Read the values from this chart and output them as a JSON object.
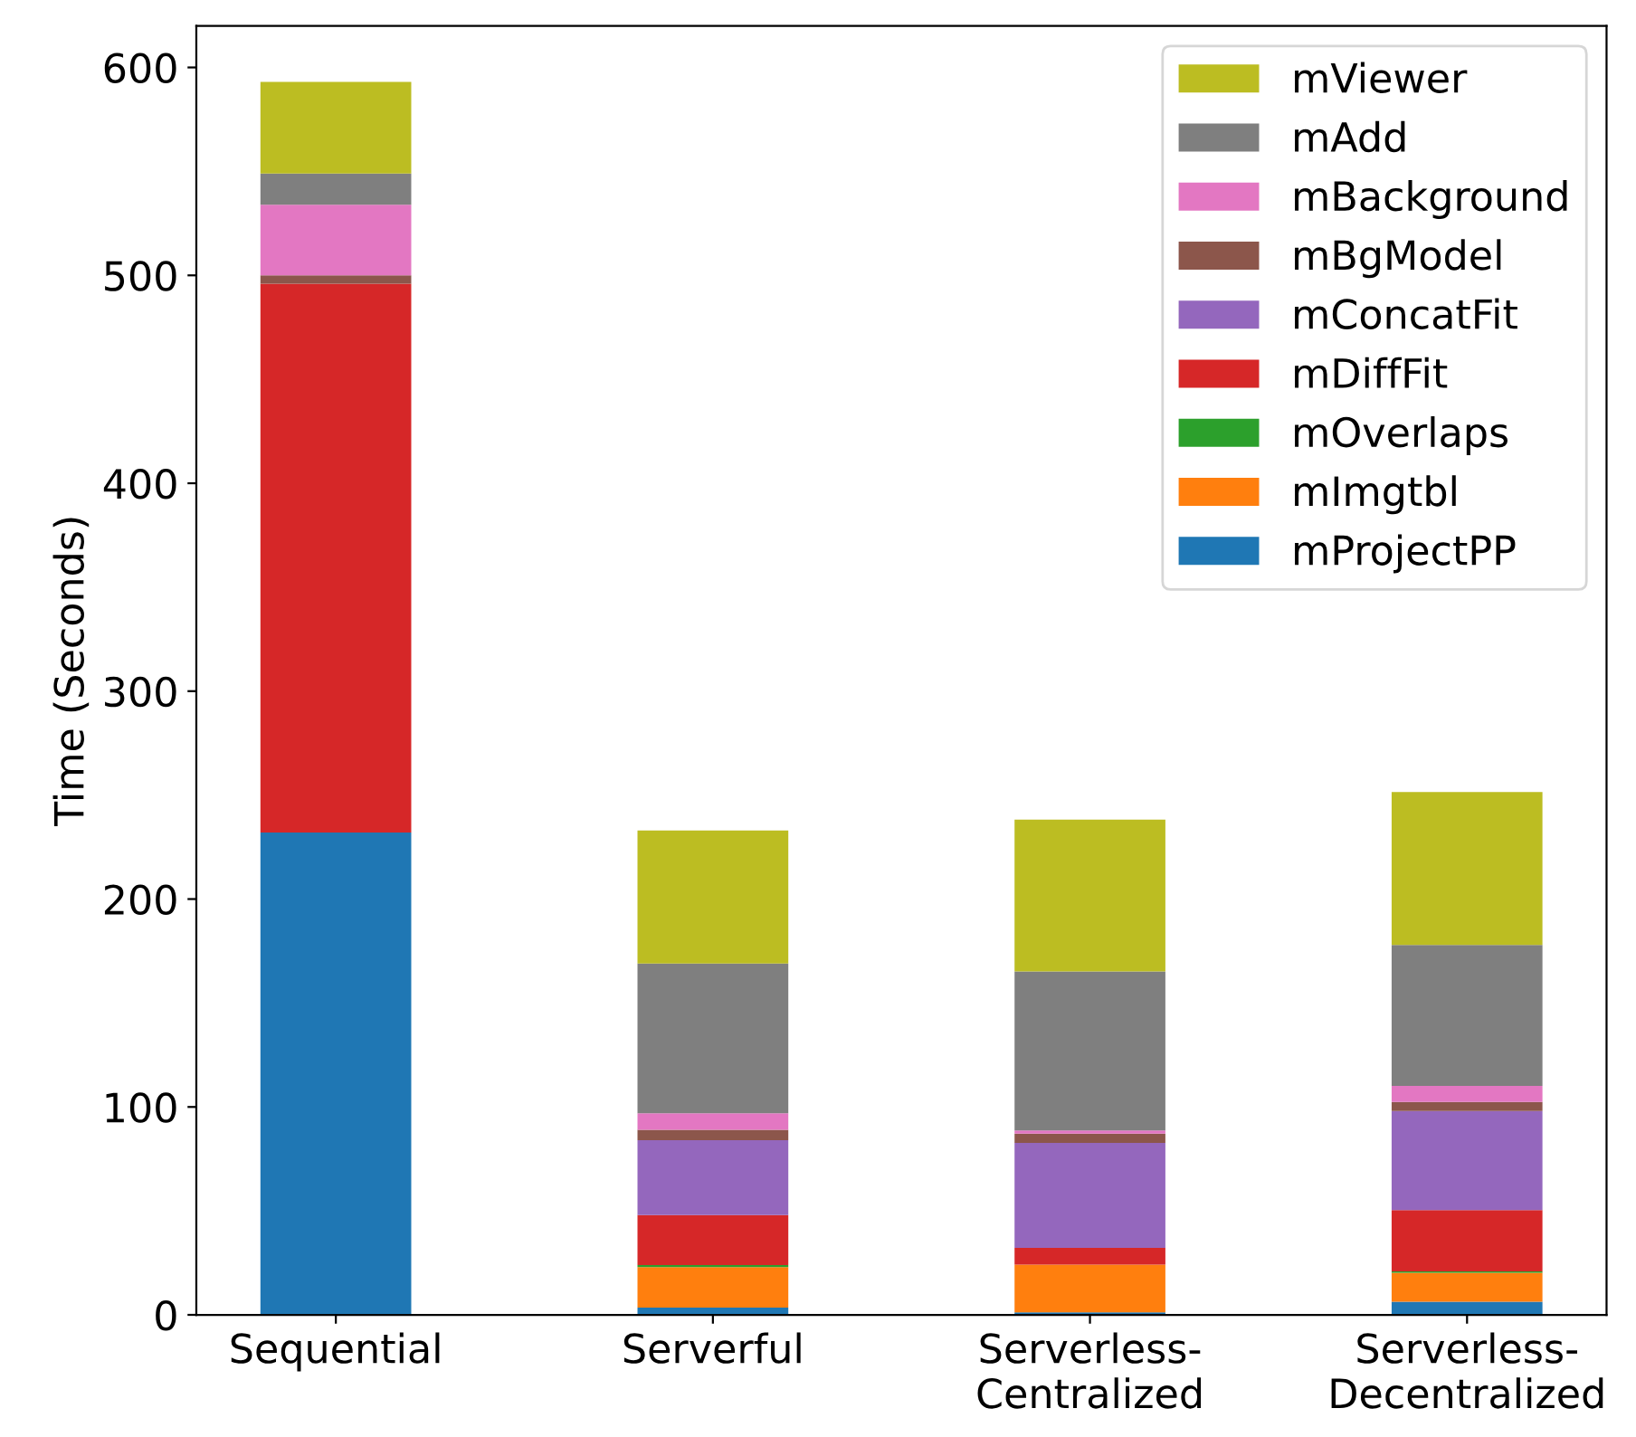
{
  "chart_data": {
    "type": "bar",
    "stacked": true,
    "ylabel": "Time (Seconds)",
    "categories": [
      "Sequential",
      "Serverful",
      "Serverless-\nCentralized",
      "Serverless-\nDecentralized"
    ],
    "series": [
      {
        "name": "mProjectPP",
        "color": "#1f77b4",
        "values": [
          232,
          3.5,
          1.2,
          6.3
        ]
      },
      {
        "name": "mImgtbl",
        "color": "#ff7f0e",
        "values": [
          0,
          19.5,
          23,
          14
        ]
      },
      {
        "name": "mOverlaps",
        "color": "#2ca02c",
        "values": [
          0,
          1,
          0,
          0.6
        ]
      },
      {
        "name": "mDiffFit",
        "color": "#d62728",
        "values": [
          264,
          24,
          8,
          29.5
        ]
      },
      {
        "name": "mConcatFit",
        "color": "#9467bd",
        "values": [
          0,
          36,
          50.5,
          47.7
        ]
      },
      {
        "name": "mBgModel",
        "color": "#8c564b",
        "values": [
          4,
          5,
          4.5,
          4.3
        ]
      },
      {
        "name": "mBackground",
        "color": "#e377c2",
        "values": [
          34,
          8,
          1.5,
          7.7
        ]
      },
      {
        "name": "mAdd",
        "color": "#7f7f7f",
        "values": [
          15,
          72,
          76.5,
          67.8
        ]
      },
      {
        "name": "mViewer",
        "color": "#bcbd22",
        "values": [
          44,
          64,
          73,
          73.6
        ]
      }
    ],
    "ylim": [
      0,
      620
    ],
    "yticks": [
      0,
      100,
      200,
      300,
      400,
      500,
      600
    ],
    "legend": "upper right"
  }
}
